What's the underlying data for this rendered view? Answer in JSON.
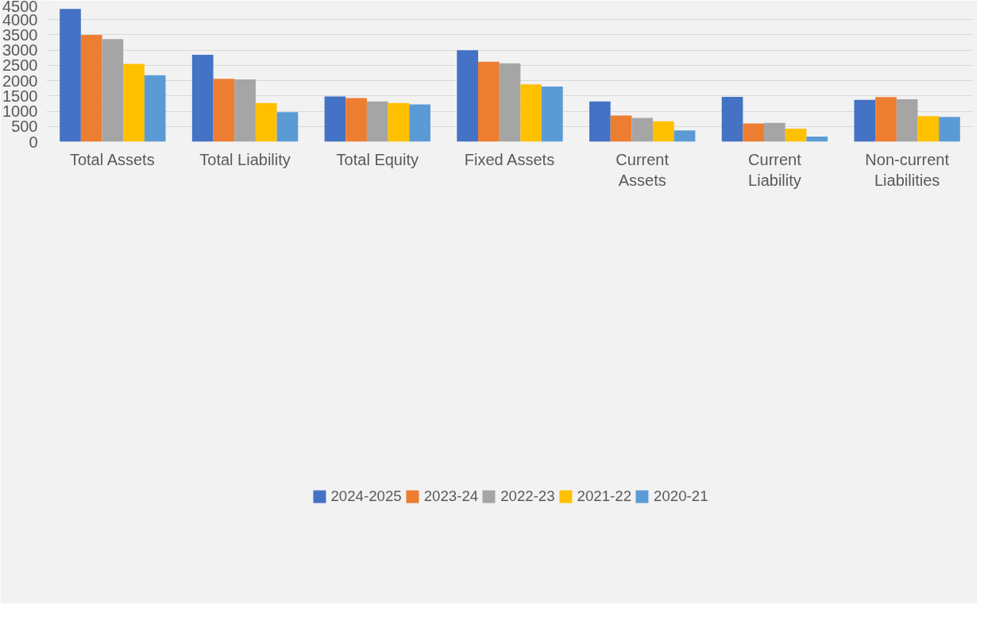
{
  "chart_data": {
    "type": "bar",
    "categories": [
      "Total Assets",
      "Total Liability",
      "Total Equity",
      "Fixed Assets",
      "Current Assets",
      "Current Liability",
      "Non-current Liabilities"
    ],
    "series": [
      {
        "name": "2024-2025",
        "color": "#4472c4",
        "values": [
          4350,
          2850,
          1480,
          3000,
          1320,
          1470,
          1370
        ]
      },
      {
        "name": "2023-24",
        "color": "#ed7d31",
        "values": [
          3500,
          2060,
          1430,
          2620,
          860,
          600,
          1460
        ]
      },
      {
        "name": "2022-23",
        "color": "#a5a5a5",
        "values": [
          3360,
          2040,
          1320,
          2570,
          780,
          620,
          1390
        ]
      },
      {
        "name": "2021-22",
        "color": "#ffc000",
        "values": [
          2550,
          1270,
          1270,
          1880,
          670,
          430,
          840
        ]
      },
      {
        "name": "2020-21",
        "color": "#5b9bd5",
        "values": [
          2180,
          970,
          1220,
          1810,
          370,
          170,
          810
        ]
      }
    ],
    "ylim": [
      0,
      4500
    ],
    "yticks": [
      0,
      500,
      1000,
      1500,
      2000,
      2500,
      3000,
      3500,
      4000,
      4500
    ],
    "grid": "y",
    "legend": "bottom"
  }
}
